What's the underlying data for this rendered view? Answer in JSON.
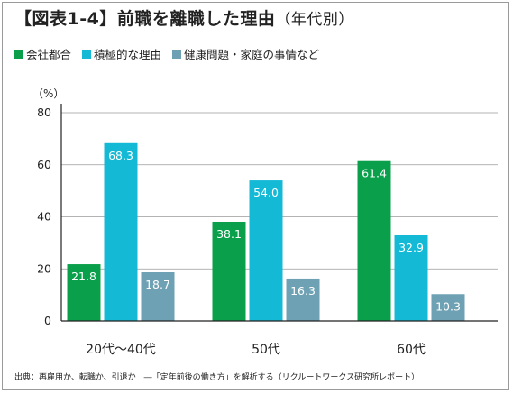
{
  "title": {
    "main": "【図表1-4】前職を離職した理由",
    "suffix": "（年代別）"
  },
  "unit_label": "（%）",
  "source": "出典：再雇用か、転職か、引退か　―「定年前後の働き方」を解析する（リクルートワークス研究所レポート）",
  "colors": {
    "company": "#0aa04b",
    "proactive": "#14b9d5",
    "health": "#6ea1b3",
    "axis": "#222222",
    "grid": "#9a9a9a"
  },
  "chart_data": {
    "type": "bar",
    "categories": [
      "20代〜40代",
      "50代",
      "60代"
    ],
    "series": [
      {
        "name": "会社都合",
        "values": [
          21.8,
          38.1,
          61.4
        ]
      },
      {
        "name": "積極的な理由",
        "values": [
          68.3,
          54.0,
          32.9
        ]
      },
      {
        "name": "健康問題・家庭の事情など",
        "values": [
          18.7,
          16.3,
          10.3
        ]
      }
    ],
    "value_labels": [
      [
        "21.8",
        "38.1",
        "61.4"
      ],
      [
        "68.3",
        "54.0",
        "32.9"
      ],
      [
        "18.7",
        "16.3",
        "10.3"
      ]
    ],
    "yticks": [
      "0",
      "20",
      "40",
      "60",
      "80"
    ],
    "ylim": [
      0,
      80
    ],
    "ylabel": "（%）",
    "grid": true,
    "legend_position": "top-left"
  }
}
